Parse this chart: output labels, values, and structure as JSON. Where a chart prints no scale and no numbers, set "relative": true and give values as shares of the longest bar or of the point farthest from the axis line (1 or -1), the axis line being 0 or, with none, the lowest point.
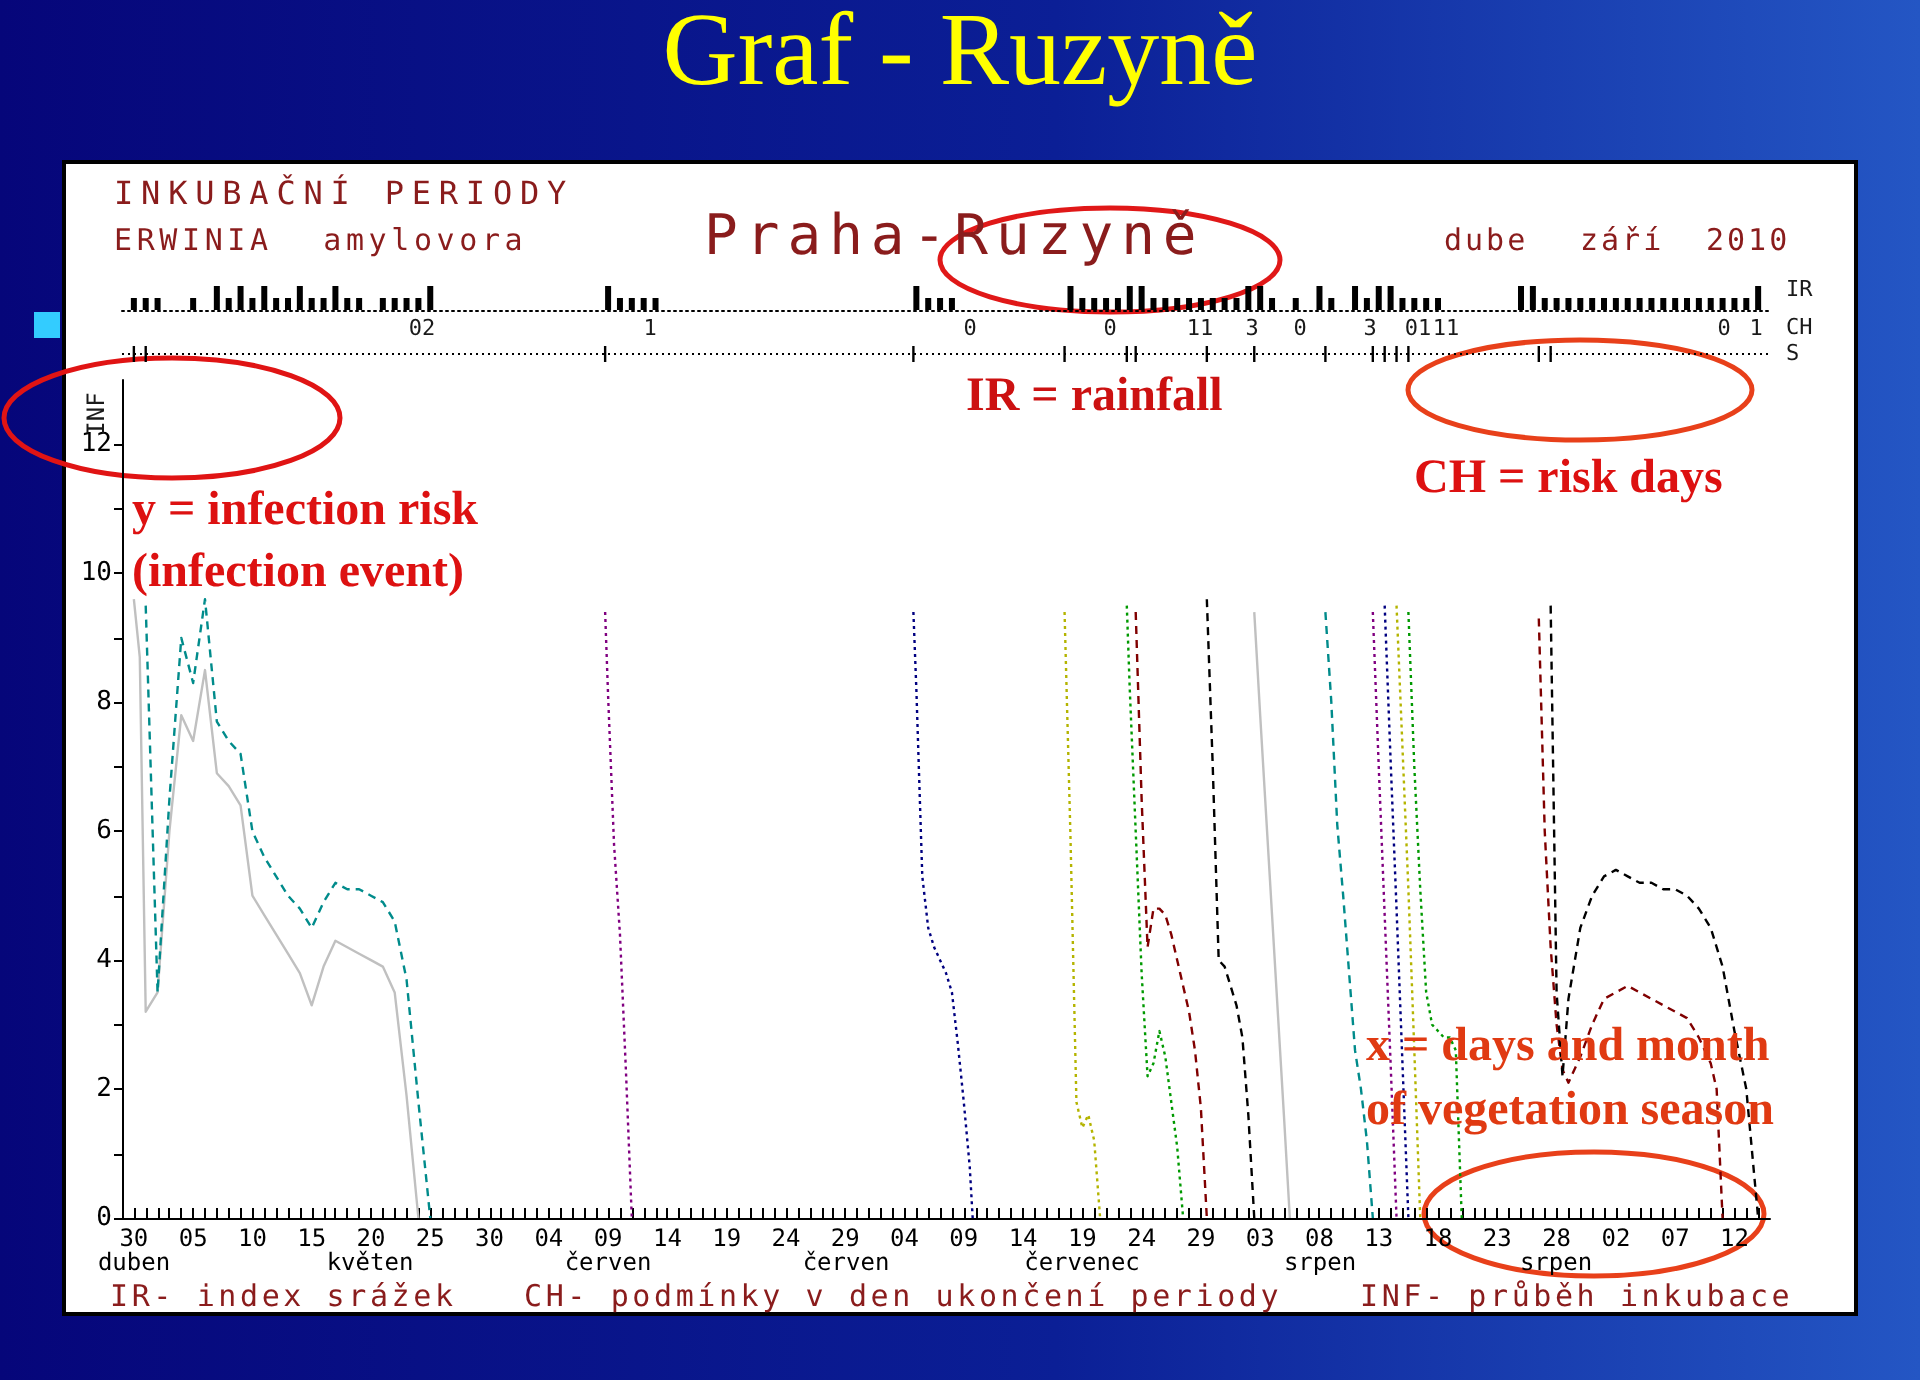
{
  "chart_data": [
    {
      "type": "bar",
      "title": "Graf - Ruzyně",
      "subtitle": "INKUBAČNÍ PERIODY",
      "ylabel": "IR",
      "annotations": [
        "ERWINIA amylovora",
        "Praha-Ruzyně",
        "dube",
        "září",
        "2010"
      ],
      "relative": true,
      "color": "#000000",
      "x": [
        "2010-04-30",
        "2010-05-01",
        "2010-05-02",
        "2010-05-05",
        "2010-05-07",
        "2010-05-08",
        "2010-05-09",
        "2010-05-10",
        "2010-05-11",
        "2010-05-12",
        "2010-05-13",
        "2010-05-14",
        "2010-05-15",
        "2010-05-16",
        "2010-05-17",
        "2010-05-18",
        "2010-05-19",
        "2010-05-21",
        "2010-05-22",
        "2010-05-23",
        "2010-05-24",
        "2010-05-25",
        "2010-06-09",
        "2010-06-10",
        "2010-06-11",
        "2010-06-12",
        "2010-06-13",
        "2010-07-05",
        "2010-07-06",
        "2010-07-07",
        "2010-07-08",
        "2010-07-18",
        "2010-07-19",
        "2010-07-20",
        "2010-07-21",
        "2010-07-22",
        "2010-07-23",
        "2010-07-24",
        "2010-07-25",
        "2010-07-26",
        "2010-07-27",
        "2010-07-28",
        "2010-07-29",
        "2010-07-30",
        "2010-07-31",
        "2010-08-01",
        "2010-08-02",
        "2010-08-03",
        "2010-08-04",
        "2010-08-06",
        "2010-08-08",
        "2010-08-09",
        "2010-08-11",
        "2010-08-12",
        "2010-08-13",
        "2010-08-14",
        "2010-08-15",
        "2010-08-16",
        "2010-08-17",
        "2010-08-18",
        "2010-08-25",
        "2010-08-26",
        "2010-08-27",
        "2010-08-28",
        "2010-08-29",
        "2010-08-30",
        "2010-08-31",
        "2010-09-01",
        "2010-09-02",
        "2010-09-03",
        "2010-09-04",
        "2010-09-05",
        "2010-09-06",
        "2010-09-07",
        "2010-09-08",
        "2010-09-09",
        "2010-09-10",
        "2010-09-11",
        "2010-09-12",
        "2010-09-13",
        "2010-09-14"
      ],
      "values": [
        0.5,
        0.5,
        0.5,
        0.5,
        1,
        0.5,
        1,
        0.5,
        1,
        0.5,
        0.5,
        1,
        0.5,
        0.5,
        1,
        0.5,
        0.5,
        0.5,
        0.5,
        0.5,
        0.5,
        1,
        1,
        0.5,
        0.5,
        0.5,
        0.5,
        1,
        0.5,
        0.5,
        0.5,
        1,
        0.5,
        0.5,
        0.5,
        0.5,
        1,
        1,
        0.5,
        0.5,
        0.5,
        0.5,
        0.5,
        0.5,
        0.5,
        0.5,
        1,
        1,
        0.5,
        0.5,
        1,
        0.5,
        1,
        0.5,
        1,
        1,
        0.5,
        0.5,
        0.5,
        0.5,
        1,
        1,
        0.5,
        0.5,
        0.5,
        0.5,
        0.5,
        0.5,
        0.5,
        0.5,
        0.5,
        0.5,
        0.5,
        0.5,
        0.5,
        0.5,
        0.5,
        0.5,
        0.5,
        0.5,
        1
      ],
      "xlim": [
        "2010-04-29",
        "2010-09-15"
      ],
      "tick_labels": false
    },
    {
      "type": "line",
      "ylabel": "INF",
      "xlim": [
        "2010-04-29",
        "2010-09-15"
      ],
      "ylim": [
        0,
        13
      ],
      "yticks": [
        0,
        {
          "value": 1,
          "label": null
        },
        2,
        {
          "value": 3,
          "label": null
        },
        4,
        {
          "value": 5,
          "label": null
        },
        6,
        {
          "value": 7,
          "label": null
        },
        8,
        {
          "value": 9,
          "label": null
        },
        10,
        {
          "value": 11,
          "label": null
        },
        12
      ],
      "xticks": [
        {
          "value": "2010-04-30",
          "label": "30"
        },
        {
          "value": "2010-05-01",
          "label": null
        },
        {
          "value": "2010-05-02",
          "label": null
        },
        {
          "value": "2010-05-03",
          "label": null
        },
        {
          "value": "2010-05-04",
          "label": null
        },
        {
          "value": "2010-05-05",
          "label": "05"
        },
        {
          "value": "2010-05-06",
          "label": null
        },
        {
          "value": "2010-05-07",
          "label": null
        },
        {
          "value": "2010-05-08",
          "label": null
        },
        {
          "value": "2010-05-09",
          "label": null
        },
        {
          "value": "2010-05-10",
          "label": "10"
        },
        {
          "value": "2010-05-11",
          "label": null
        },
        {
          "value": "2010-05-12",
          "label": null
        },
        {
          "value": "2010-05-13",
          "label": null
        },
        {
          "value": "2010-05-14",
          "label": null
        },
        {
          "value": "2010-05-15",
          "label": "15"
        },
        {
          "value": "2010-05-16",
          "label": null
        },
        {
          "value": "2010-05-17",
          "label": null
        },
        {
          "value": "2010-05-18",
          "label": null
        },
        {
          "value": "2010-05-19",
          "label": null
        },
        {
          "value": "2010-05-20",
          "label": "20"
        },
        {
          "value": "2010-05-21",
          "label": null
        },
        {
          "value": "2010-05-22",
          "label": null
        },
        {
          "value": "2010-05-23",
          "label": null
        },
        {
          "value": "2010-05-24",
          "label": null
        },
        {
          "value": "2010-05-25",
          "label": "25"
        },
        {
          "value": "2010-05-26",
          "label": null
        },
        {
          "value": "2010-05-27",
          "label": null
        },
        {
          "value": "2010-05-28",
          "label": null
        },
        {
          "value": "2010-05-29",
          "label": null
        },
        {
          "value": "2010-05-30",
          "label": "30"
        },
        {
          "value": "2010-05-31",
          "label": null
        },
        {
          "value": "2010-06-01",
          "label": null
        },
        {
          "value": "2010-06-02",
          "label": null
        },
        {
          "value": "2010-06-03",
          "label": null
        },
        {
          "value": "2010-06-04",
          "label": "04"
        },
        {
          "value": "2010-06-05",
          "label": null
        },
        {
          "value": "2010-06-06",
          "label": null
        },
        {
          "value": "2010-06-07",
          "label": null
        },
        {
          "value": "2010-06-08",
          "label": null
        },
        {
          "value": "2010-06-09",
          "label": "09"
        },
        {
          "value": "2010-06-10",
          "label": null
        },
        {
          "value": "2010-06-11",
          "label": null
        },
        {
          "value": "2010-06-12",
          "label": null
        },
        {
          "value": "2010-06-13",
          "label": null
        },
        {
          "value": "2010-06-14",
          "label": "14"
        },
        {
          "value": "2010-06-15",
          "label": null
        },
        {
          "value": "2010-06-16",
          "label": null
        },
        {
          "value": "2010-06-17",
          "label": null
        },
        {
          "value": "2010-06-18",
          "label": null
        },
        {
          "value": "2010-06-19",
          "label": "19"
        },
        {
          "value": "2010-06-20",
          "label": null
        },
        {
          "value": "2010-06-21",
          "label": null
        },
        {
          "value": "2010-06-22",
          "label": null
        },
        {
          "value": "2010-06-23",
          "label": null
        },
        {
          "value": "2010-06-24",
          "label": "24"
        },
        {
          "value": "2010-06-25",
          "label": null
        },
        {
          "value": "2010-06-26",
          "label": null
        },
        {
          "value": "2010-06-27",
          "label": null
        },
        {
          "value": "2010-06-28",
          "label": null
        },
        {
          "value": "2010-06-29",
          "label": "29"
        },
        {
          "value": "2010-06-30",
          "label": null
        },
        {
          "value": "2010-07-01",
          "label": null
        },
        {
          "value": "2010-07-02",
          "label": null
        },
        {
          "value": "2010-07-03",
          "label": null
        },
        {
          "value": "2010-07-04",
          "label": "04"
        },
        {
          "value": "2010-07-05",
          "label": null
        },
        {
          "value": "2010-07-06",
          "label": null
        },
        {
          "value": "2010-07-07",
          "label": null
        },
        {
          "value": "2010-07-08",
          "label": null
        },
        {
          "value": "2010-07-09",
          "label": "09"
        },
        {
          "value": "2010-07-10",
          "label": null
        },
        {
          "value": "2010-07-11",
          "label": null
        },
        {
          "value": "2010-07-12",
          "label": null
        },
        {
          "value": "2010-07-13",
          "label": null
        },
        {
          "value": "2010-07-14",
          "label": "14"
        },
        {
          "value": "2010-07-15",
          "label": null
        },
        {
          "value": "2010-07-16",
          "label": null
        },
        {
          "value": "2010-07-17",
          "label": null
        },
        {
          "value": "2010-07-18",
          "label": null
        },
        {
          "value": "2010-07-19",
          "label": "19"
        },
        {
          "value": "2010-07-20",
          "label": null
        },
        {
          "value": "2010-07-21",
          "label": null
        },
        {
          "value": "2010-07-22",
          "label": null
        },
        {
          "value": "2010-07-23",
          "label": null
        },
        {
          "value": "2010-07-24",
          "label": "24"
        },
        {
          "value": "2010-07-25",
          "label": null
        },
        {
          "value": "2010-07-26",
          "label": null
        },
        {
          "value": "2010-07-27",
          "label": null
        },
        {
          "value": "2010-07-28",
          "label": null
        },
        {
          "value": "2010-07-29",
          "label": "29"
        },
        {
          "value": "2010-07-30",
          "label": null
        },
        {
          "value": "2010-07-31",
          "label": null
        },
        {
          "value": "2010-08-01",
          "label": null
        },
        {
          "value": "2010-08-02",
          "label": null
        },
        {
          "value": "2010-08-03",
          "label": "03"
        },
        {
          "value": "2010-08-04",
          "label": null
        },
        {
          "value": "2010-08-05",
          "label": null
        },
        {
          "value": "2010-08-06",
          "label": null
        },
        {
          "value": "2010-08-07",
          "label": null
        },
        {
          "value": "2010-08-08",
          "label": "08"
        },
        {
          "value": "2010-08-09",
          "label": null
        },
        {
          "value": "2010-08-10",
          "label": null
        },
        {
          "value": "2010-08-11",
          "label": null
        },
        {
          "value": "2010-08-12",
          "label": null
        },
        {
          "value": "2010-08-13",
          "label": "13"
        },
        {
          "value": "2010-08-14",
          "label": null
        },
        {
          "value": "2010-08-15",
          "label": null
        },
        {
          "value": "2010-08-16",
          "label": null
        },
        {
          "value": "2010-08-17",
          "label": null
        },
        {
          "value": "2010-08-18",
          "label": "18"
        },
        {
          "value": "2010-08-19",
          "label": null
        },
        {
          "value": "2010-08-20",
          "label": null
        },
        {
          "value": "2010-08-21",
          "label": null
        },
        {
          "value": "2010-08-22",
          "label": null
        },
        {
          "value": "2010-08-23",
          "label": "23"
        },
        {
          "value": "2010-08-24",
          "label": null
        },
        {
          "value": "2010-08-25",
          "label": null
        },
        {
          "value": "2010-08-26",
          "label": null
        },
        {
          "value": "2010-08-27",
          "label": null
        },
        {
          "value": "2010-08-28",
          "label": "28"
        },
        {
          "value": "2010-08-29",
          "label": null
        },
        {
          "value": "2010-08-30",
          "label": null
        },
        {
          "value": "2010-08-31",
          "label": null
        },
        {
          "value": "2010-09-01",
          "label": null
        },
        {
          "value": "2010-09-02",
          "label": "02"
        },
        {
          "value": "2010-09-03",
          "label": null
        },
        {
          "value": "2010-09-04",
          "label": null
        },
        {
          "value": "2010-09-05",
          "label": null
        },
        {
          "value": "2010-09-06",
          "label": null
        },
        {
          "value": "2010-09-07",
          "label": "07"
        },
        {
          "value": "2010-09-08",
          "label": null
        },
        {
          "value": "2010-09-09",
          "label": null
        },
        {
          "value": "2010-09-10",
          "label": null
        },
        {
          "value": "2010-09-11",
          "label": null
        },
        {
          "value": "2010-09-12",
          "label": "12"
        },
        {
          "value": "2010-09-13",
          "label": null
        },
        {
          "value": "2010-09-14",
          "label": null
        }
      ],
      "series": [
        {
          "color": "#c0c0c0",
          "line_style": "solid",
          "x": [
            "2010-04-30",
            "2010-04-30T12:00",
            "2010-05-01",
            "2010-05-02",
            "2010-05-03",
            "2010-05-04",
            "2010-05-05",
            "2010-05-06",
            "2010-05-07",
            "2010-05-08",
            "2010-05-09",
            "2010-05-10",
            "2010-05-11",
            "2010-05-12",
            "2010-05-13",
            "2010-05-14",
            "2010-05-15",
            "2010-05-16",
            "2010-05-17",
            "2010-05-18",
            "2010-05-19",
            "2010-05-20",
            "2010-05-21",
            "2010-05-22",
            "2010-05-23",
            "2010-05-24"
          ],
          "values": [
            9.6,
            8.7,
            3.2,
            3.5,
            6.0,
            7.8,
            7.4,
            8.5,
            6.9,
            6.7,
            6.4,
            5.0,
            4.7,
            4.4,
            4.1,
            3.8,
            3.3,
            3.9,
            4.3,
            4.2,
            4.1,
            4.0,
            3.9,
            3.5,
            1.9,
            0
          ]
        },
        {
          "color": "#008b8b",
          "line_style": "dashed",
          "x": [
            "2010-05-01",
            "2010-05-02",
            "2010-05-03",
            "2010-05-04",
            "2010-05-05",
            "2010-05-06",
            "2010-05-07",
            "2010-05-08",
            "2010-05-09",
            "2010-05-10",
            "2010-05-11",
            "2010-05-12",
            "2010-05-13",
            "2010-05-14",
            "2010-05-15",
            "2010-05-16",
            "2010-05-17",
            "2010-05-18",
            "2010-05-19",
            "2010-05-20",
            "2010-05-21",
            "2010-05-22",
            "2010-05-23",
            "2010-05-24",
            "2010-05-25"
          ],
          "values": [
            9.5,
            3.5,
            6.5,
            9.0,
            8.3,
            9.6,
            7.7,
            7.4,
            7.2,
            6.0,
            5.6,
            5.3,
            5.0,
            4.8,
            4.5,
            4.9,
            5.2,
            5.1,
            5.1,
            5.0,
            4.9,
            4.6,
            3.7,
            1.8,
            0
          ]
        },
        {
          "color": "#800080",
          "line_style": "dotted",
          "x": [
            "2010-06-08T18:00",
            "2010-06-09",
            "2010-06-09T12:00",
            "2010-06-10",
            "2010-06-10T12:00",
            "2010-06-11"
          ],
          "values": [
            9.4,
            8.1,
            5.8,
            4.4,
            2.3,
            0
          ]
        },
        {
          "color": "#000080",
          "line_style": "dotted",
          "x": [
            "2010-07-04T18:00",
            "2010-07-05",
            "2010-07-05T12:00",
            "2010-07-06",
            "2010-07-06T12:00",
            "2010-07-07",
            "2010-07-07T12:00",
            "2010-07-08",
            "2010-07-08T12:00",
            "2010-07-09",
            "2010-07-09T12:00",
            "2010-07-09T18:00"
          ],
          "values": [
            9.4,
            8.2,
            5.3,
            4.5,
            4.2,
            4.0,
            3.8,
            3.5,
            2.7,
            1.8,
            0.8,
            0
          ]
        },
        {
          "color": "#b4b400",
          "line_style": "dotted",
          "x": [
            "2010-07-17T12:00",
            "2010-07-18",
            "2010-07-18T12:00",
            "2010-07-19",
            "2010-07-19T12:00",
            "2010-07-20",
            "2010-07-20T12:00"
          ],
          "values": [
            9.4,
            5.9,
            1.8,
            1.4,
            1.6,
            1.2,
            0
          ]
        },
        {
          "color": "#009900",
          "line_style": "dotted",
          "x": [
            "2010-07-22T18:00",
            "2010-07-23",
            "2010-07-23T12:00",
            "2010-07-24",
            "2010-07-24T12:00",
            "2010-07-25",
            "2010-07-25T12:00",
            "2010-07-26",
            "2010-07-26T12:00",
            "2010-07-27",
            "2010-07-27T12:00"
          ],
          "values": [
            9.5,
            8.2,
            6.0,
            3.8,
            2.2,
            2.4,
            2.9,
            2.5,
            1.8,
            1.1,
            0
          ]
        },
        {
          "color": "#800000",
          "line_style": "dashed",
          "x": [
            "2010-07-23T12:00",
            "2010-07-24",
            "2010-07-24T12:00",
            "2010-07-25",
            "2010-07-25T12:00",
            "2010-07-26",
            "2010-07-26T12:00",
            "2010-07-27",
            "2010-07-27T12:00",
            "2010-07-28",
            "2010-07-28T12:00",
            "2010-07-29",
            "2010-07-29T12:00"
          ],
          "values": [
            9.4,
            6.5,
            4.2,
            4.8,
            4.8,
            4.7,
            4.4,
            4.0,
            3.6,
            3.2,
            2.6,
            1.7,
            0
          ]
        },
        {
          "color": "#000000",
          "line_style": "dashed",
          "x": [
            "2010-07-29T12:00",
            "2010-07-30",
            "2010-07-30T12:00",
            "2010-07-31",
            "2010-07-31T12:00",
            "2010-08-01",
            "2010-08-01T12:00",
            "2010-08-02",
            "2010-08-02T12:00"
          ],
          "values": [
            9.6,
            7.0,
            4.0,
            3.9,
            3.6,
            3.3,
            2.8,
            1.6,
            0
          ]
        },
        {
          "color": "#c0c0c0",
          "line_style": "solid",
          "x": [
            "2010-08-02T12:00",
            "2010-08-03",
            "2010-08-04",
            "2010-08-05",
            "2010-08-05T12:00"
          ],
          "values": [
            9.4,
            7.8,
            4.7,
            1.6,
            0
          ]
        },
        {
          "color": "#008b8b",
          "line_style": "dashed",
          "x": [
            "2010-08-08T12:00",
            "2010-08-09",
            "2010-08-09T12:00",
            "2010-08-10",
            "2010-08-10T12:00",
            "2010-08-11",
            "2010-08-11T12:00",
            "2010-08-12",
            "2010-08-12T12:00"
          ],
          "values": [
            9.4,
            8.0,
            6.1,
            5.0,
            3.8,
            2.6,
            2.0,
            1.2,
            0
          ]
        },
        {
          "color": "#800080",
          "line_style": "dotted",
          "x": [
            "2010-08-12T12:00",
            "2010-08-13",
            "2010-08-13T12:00",
            "2010-08-14",
            "2010-08-14T12:00"
          ],
          "values": [
            9.4,
            7.0,
            4.7,
            2.4,
            0
          ]
        },
        {
          "color": "#000080",
          "line_style": "dotted",
          "x": [
            "2010-08-13T12:00",
            "2010-08-14",
            "2010-08-14T12:00",
            "2010-08-15",
            "2010-08-15T12:00"
          ],
          "values": [
            9.5,
            7.1,
            4.8,
            2.4,
            0
          ]
        },
        {
          "color": "#b4b400",
          "line_style": "dotted",
          "x": [
            "2010-08-14T12:00",
            "2010-08-15",
            "2010-08-15T12:00",
            "2010-08-16",
            "2010-08-16T12:00"
          ],
          "values": [
            9.5,
            7.3,
            5.1,
            2.6,
            0
          ]
        },
        {
          "color": "#009900",
          "line_style": "dotted",
          "x": [
            "2010-08-15T12:00",
            "2010-08-16",
            "2010-08-16T12:00",
            "2010-08-17",
            "2010-08-17T12:00",
            "2010-08-18",
            "2010-08-18T12:00",
            "2010-08-19",
            "2010-08-19T12:00",
            "2010-08-20"
          ],
          "values": [
            9.4,
            7.0,
            5.1,
            3.5,
            3.0,
            2.9,
            2.8,
            2.8,
            2.6,
            0
          ]
        },
        {
          "color": "#800000",
          "line_style": "dashed",
          "x": [
            "2010-08-26T12:00",
            "2010-08-27",
            "2010-08-27T12:00",
            "2010-08-28",
            "2010-08-28T12:00",
            "2010-08-29",
            "2010-08-30",
            "2010-08-31",
            "2010-09-01",
            "2010-09-02",
            "2010-09-03",
            "2010-09-04",
            "2010-09-05",
            "2010-09-06",
            "2010-09-07",
            "2010-09-08",
            "2010-09-09",
            "2010-09-10",
            "2010-09-10T12:00",
            "2010-09-11"
          ],
          "values": [
            9.3,
            6.0,
            4.2,
            3.0,
            2.3,
            2.1,
            2.5,
            3.0,
            3.4,
            3.5,
            3.6,
            3.5,
            3.4,
            3.3,
            3.2,
            3.1,
            2.8,
            2.4,
            2.0,
            0
          ]
        },
        {
          "color": "#000000",
          "line_style": "dashed",
          "x": [
            "2010-08-27T12:00",
            "2010-08-28",
            "2010-08-28T12:00",
            "2010-08-29",
            "2010-08-30",
            "2010-08-31",
            "2010-09-01",
            "2010-09-02",
            "2010-09-03",
            "2010-09-04",
            "2010-09-05",
            "2010-09-06",
            "2010-09-07",
            "2010-09-08",
            "2010-09-09",
            "2010-09-10",
            "2010-09-11",
            "2010-09-12",
            "2010-09-13",
            "2010-09-14"
          ],
          "values": [
            9.5,
            3.5,
            2.2,
            3.4,
            4.5,
            5.0,
            5.3,
            5.4,
            5.3,
            5.2,
            5.2,
            5.1,
            5.1,
            5.0,
            4.8,
            4.5,
            3.9,
            2.9,
            2.0,
            0
          ]
        }
      ],
      "annotations": [
        "CH",
        "S",
        "IR- index srážek",
        "CH- podmínky v den ukončení periody",
        "INF- průběh inkubace",
        "y = infection risk",
        "(infection event)",
        "IR = rainfall",
        "CH = risk days",
        "x = days and month",
        "of vegetation season",
        "duben",
        "květen",
        "červen",
        "červen",
        "červenec",
        "srpen",
        "srpen",
        "02",
        "1",
        "0",
        "0",
        "11",
        "3",
        "0",
        "3",
        "01",
        "11",
        "0",
        "1"
      ]
    }
  ]
}
